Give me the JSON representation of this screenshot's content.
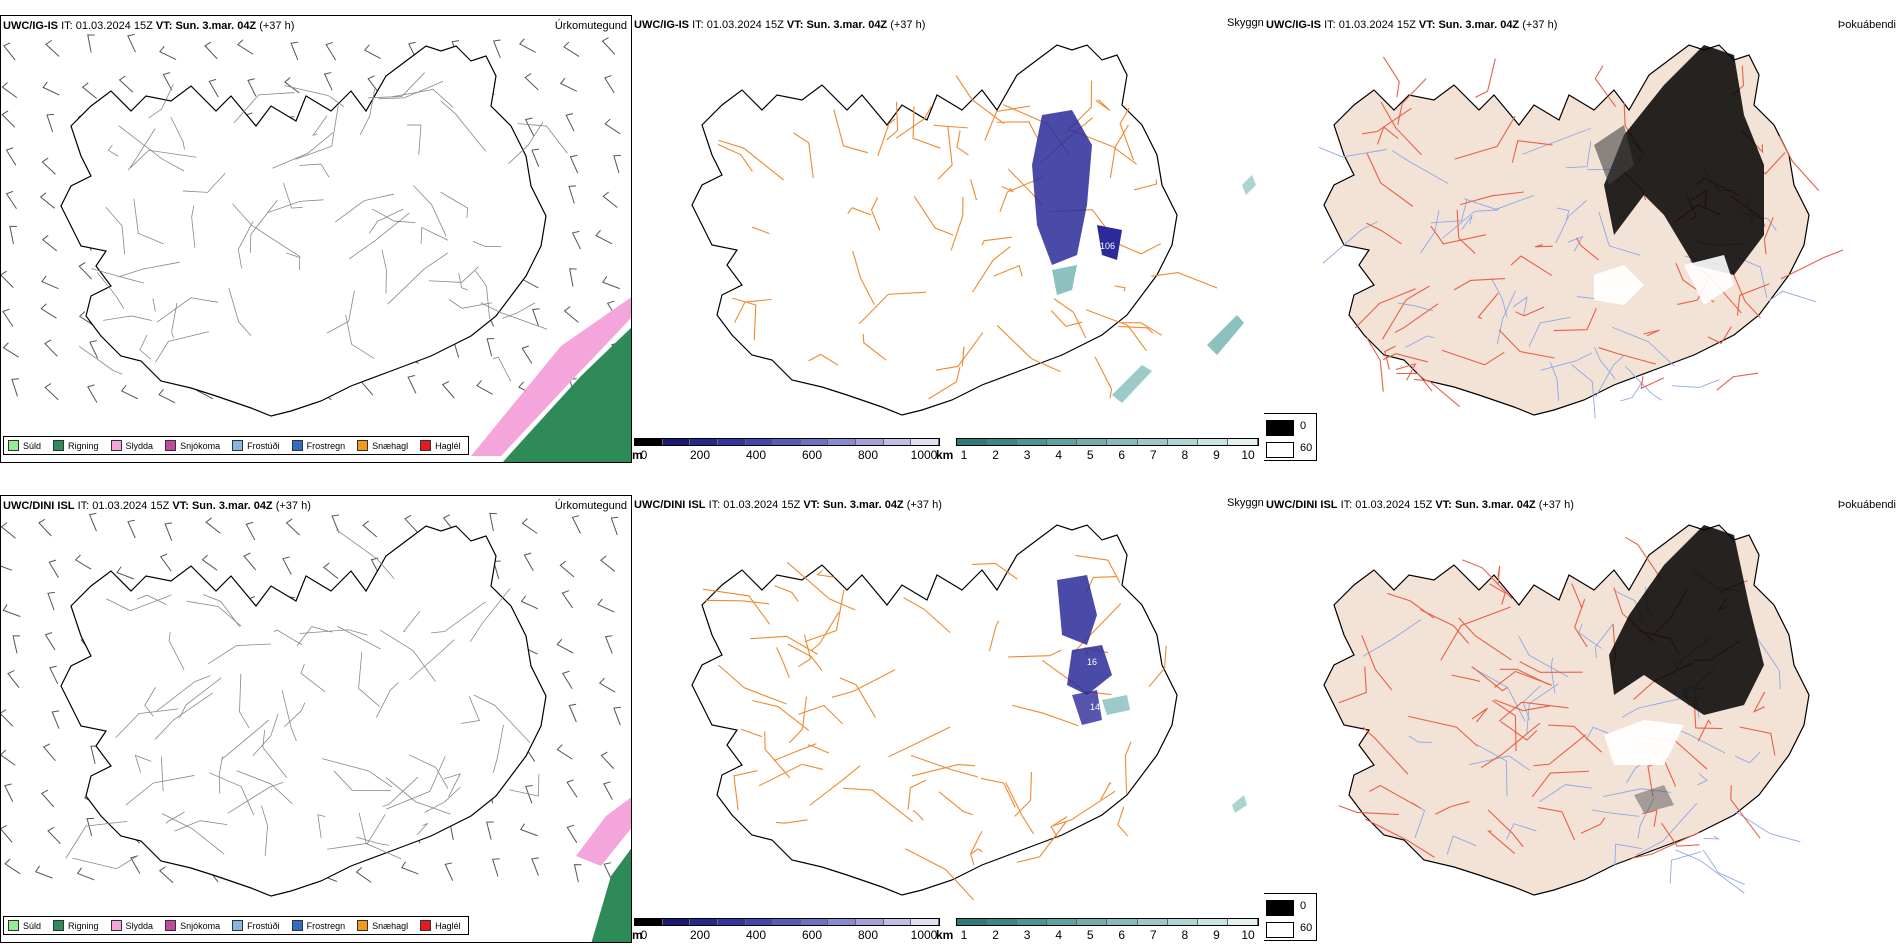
{
  "rows": [
    {
      "model": "UWC/IG-IS",
      "it_label": "IT:",
      "it_value": "01.03.2024 15Z",
      "vt_label": "VT:",
      "vt_value": "Sun. 3.mar. 04Z",
      "lead": "(+37 h)"
    },
    {
      "model": "UWC/DINI ISL",
      "it_label": "IT:",
      "it_value": "01.03.2024 15Z",
      "vt_label": "VT:",
      "vt_value": "Sun. 3.mar. 04Z",
      "lead": "(+37 h)"
    }
  ],
  "panel_titles": {
    "precip_type": "Úrkomutegund",
    "visibility": "Skyggni",
    "fog": "Þokuábendi"
  },
  "precip_legend": [
    {
      "label": "Súld",
      "color": "#90ee90"
    },
    {
      "label": "Rigning",
      "color": "#2e8b57"
    },
    {
      "label": "Slydda",
      "color": "#f4a6dc"
    },
    {
      "label": "Snjókoma",
      "color": "#c04aa0"
    },
    {
      "label": "Frostúði",
      "color": "#87b5ea"
    },
    {
      "label": "Frostregn",
      "color": "#2f6fbf"
    },
    {
      "label": "Snæhagl",
      "color": "#f39a1e"
    },
    {
      "label": "Haglél",
      "color": "#e31b1b"
    }
  ],
  "ceiling_bar": {
    "unit": "m",
    "ticks": [
      "0",
      "200",
      "400",
      "600",
      "800",
      "1000"
    ],
    "colors": [
      "#000000",
      "#191970",
      "#26268a",
      "#3535a0",
      "#4545ad",
      "#5a5ab8",
      "#7070c3",
      "#8a8acd",
      "#a2a2d8",
      "#c0c0e6",
      "#e0e0f4"
    ]
  },
  "visibility_bar": {
    "unit": "km",
    "ticks": [
      "1",
      "2",
      "3",
      "4",
      "5",
      "6",
      "7",
      "8",
      "9",
      "10"
    ],
    "colors": [
      "#2e7b78",
      "#3a8785",
      "#4b9593",
      "#5ea3a1",
      "#70afad",
      "#84bcba",
      "#9ac9c7",
      "#b0d6d4",
      "#c8e3e2",
      "#e2f1f0"
    ]
  },
  "fog_legend": [
    {
      "label": "0",
      "color": "#000000"
    },
    {
      "label": "60",
      "color": "#ffffff"
    }
  ],
  "map_labels": {
    "row1": [
      "106"
    ],
    "row2": [
      "16",
      "14"
    ]
  },
  "colors": {
    "coast": "#000000",
    "roads": "#f08a30",
    "fog_land": "#f3e3d6",
    "fog_roads": "#e8604a",
    "rivers": "#8fa8e6",
    "cloud_blue": "#2a2a9a",
    "cloud_teal": "#5aa7a3",
    "rain": "#2e8b57",
    "sleet": "#f4a6dc"
  }
}
